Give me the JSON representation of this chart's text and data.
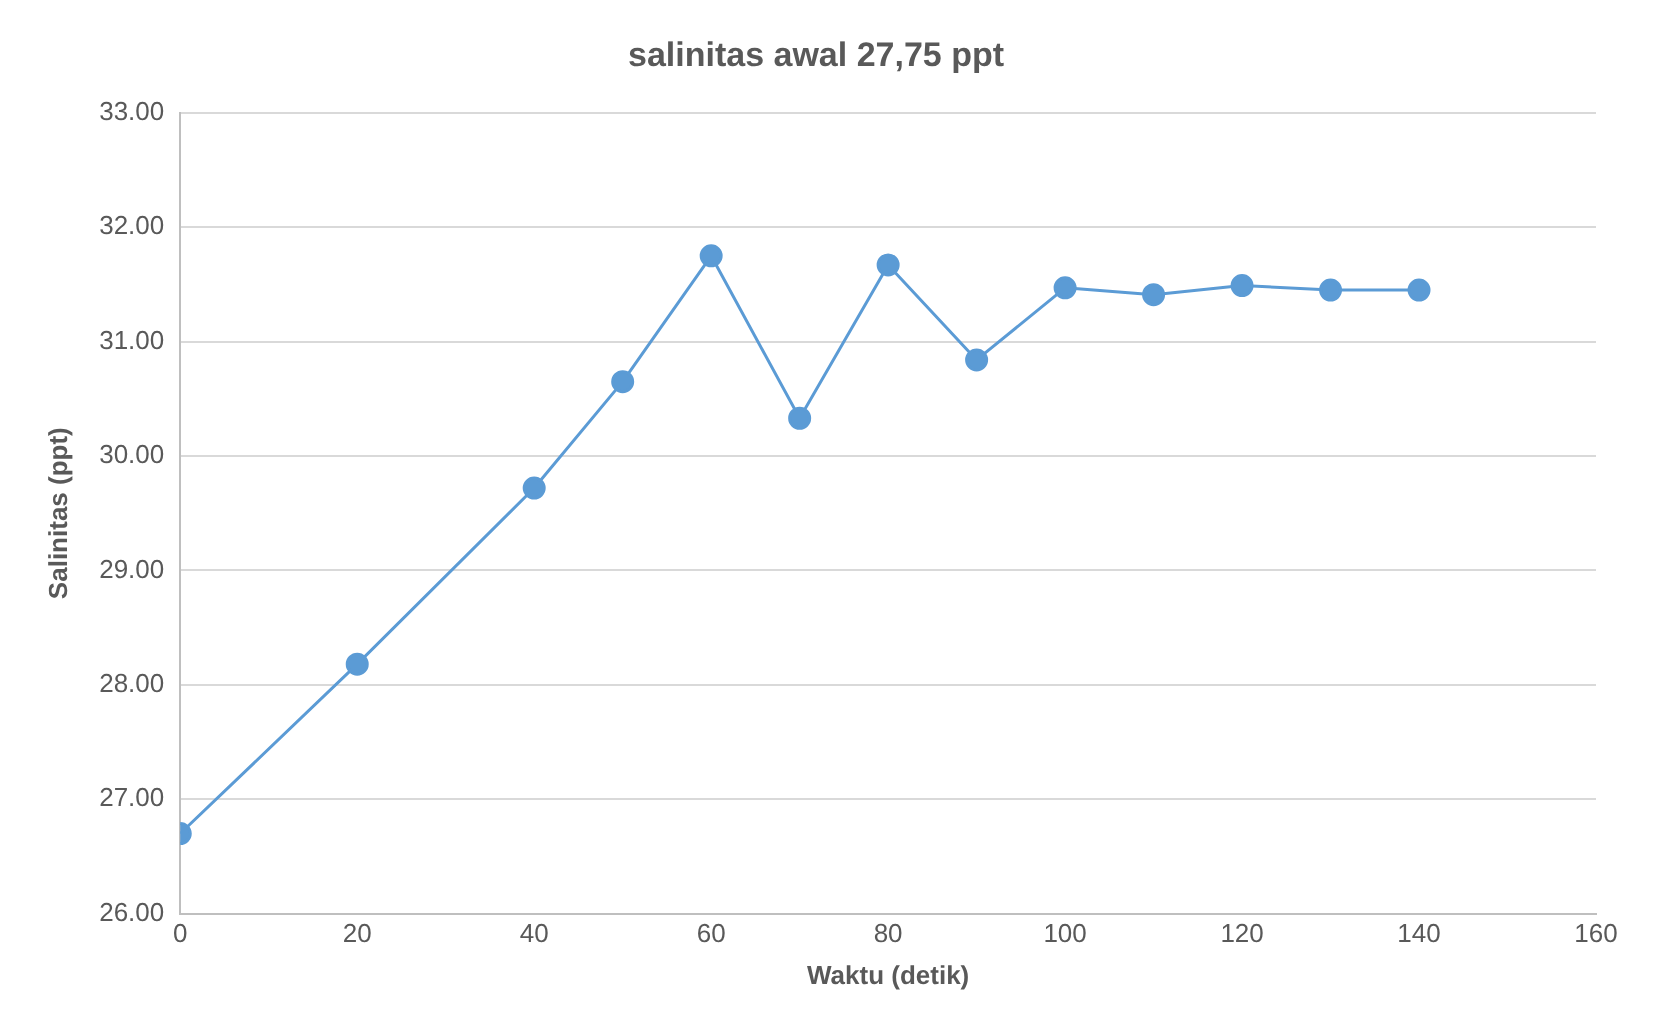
{
  "chart_data": {
    "type": "line",
    "title": "salinitas awal 27,75 ppt",
    "xlabel": "Waktu (detik)",
    "ylabel": "Salinitas (ppt)",
    "x": [
      0,
      20,
      40,
      50,
      60,
      70,
      80,
      90,
      100,
      110,
      120,
      130,
      140
    ],
    "series": [
      {
        "color": "#5b9bd5",
        "values": [
          26.7,
          28.18,
          29.72,
          30.65,
          31.75,
          30.33,
          31.67,
          30.84,
          31.47,
          31.41,
          31.49,
          31.45,
          31.45
        ]
      }
    ],
    "xlim": [
      0,
      160
    ],
    "xticks": [
      0,
      20,
      40,
      60,
      80,
      100,
      120,
      140,
      160
    ],
    "ylim": [
      26,
      33
    ],
    "yticks": [
      {
        "value": 26,
        "label": "26.00"
      },
      {
        "value": 27,
        "label": "27.00"
      },
      {
        "value": 28,
        "label": "28.00"
      },
      {
        "value": 29,
        "label": "29.00"
      },
      {
        "value": 30,
        "label": "30.00"
      },
      {
        "value": 31,
        "label": "31.00"
      },
      {
        "value": 32,
        "label": "32.00"
      },
      {
        "value": 33,
        "label": "33.00"
      }
    ],
    "grid": "y",
    "marker": "circle",
    "line_style": "solid"
  }
}
